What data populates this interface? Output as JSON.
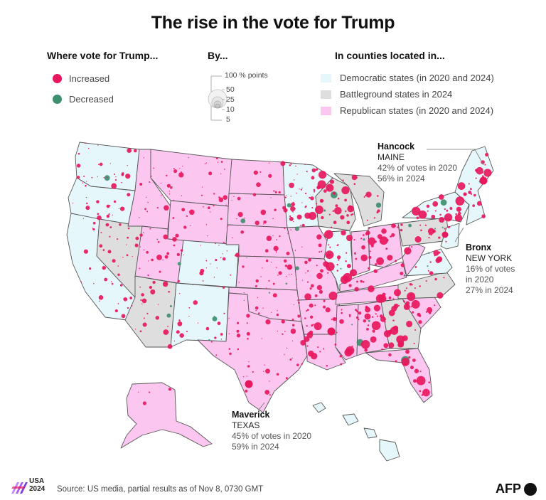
{
  "title": "The rise in the vote for Trump",
  "legend": {
    "direction_head": "Where vote for Trump...",
    "increased": "Increased",
    "decreased": "Decreased",
    "size_head": "By...",
    "size_labels": [
      "100 % points",
      "50",
      "25",
      "10",
      "5"
    ],
    "state_head": "In counties located in...",
    "democratic": "Democratic states (in 2020 and 2024)",
    "battleground": "Battleground states in 2024",
    "republican": "Republican states (in 2020 and 2024)"
  },
  "colors": {
    "increased": "#e8175d",
    "decreased": "#3e8f6f",
    "democratic_fill": "#e6f7fb",
    "battleground_fill": "#dedede",
    "republican_fill": "#fbc6ef",
    "border": "#555555"
  },
  "annotations": {
    "hancock": {
      "name": "Hancock",
      "state": "MAINE",
      "line1": "42% of votes in 2020",
      "line2": "56% in 2024"
    },
    "bronx": {
      "name": "Bronx",
      "state": "NEW YORK",
      "line1": "16% of votes",
      "line2": "in 2020",
      "line3": "27% in 2024"
    },
    "maverick": {
      "name": "Maverick",
      "state": "TEXAS",
      "line1": "45% of votes in 2020",
      "line2": "59% in 2024"
    }
  },
  "footer": {
    "source": "Source: US media, partial results as of Nov 8, 0730 GMT",
    "logo_line1": "USA",
    "logo_line2": "2024",
    "agency": "AFP"
  }
}
